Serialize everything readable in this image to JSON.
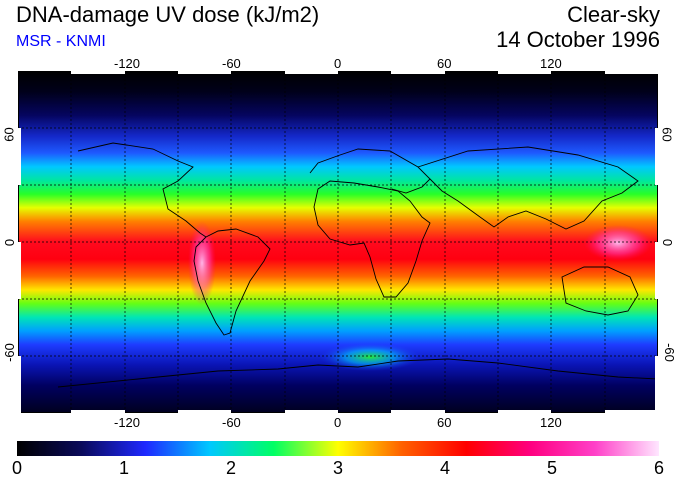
{
  "header": {
    "title": "DNA-damage UV dose (kJ/m2)",
    "subtitle": "MSR - KNMI",
    "condition": "Clear-sky",
    "date": "14 October 1996"
  },
  "map": {
    "lon_ticks": [
      "-120",
      "-60",
      "0",
      "60",
      "120"
    ],
    "lat_ticks": [
      "60",
      "0",
      "-60"
    ]
  },
  "colorbar": {
    "labels": [
      "0",
      "1",
      "2",
      "3",
      "4",
      "5",
      "6"
    ],
    "stops": [
      "#000000",
      "#0a0a5a",
      "#1e28ff",
      "#00c8ff",
      "#00ff64",
      "#ffff00",
      "#ff6000",
      "#ff0000",
      "#ff0080",
      "#ff40c8",
      "#ffe6ff"
    ]
  },
  "colors": {
    "title_color": "#000000",
    "subtitle_color": "#0000ff"
  }
}
